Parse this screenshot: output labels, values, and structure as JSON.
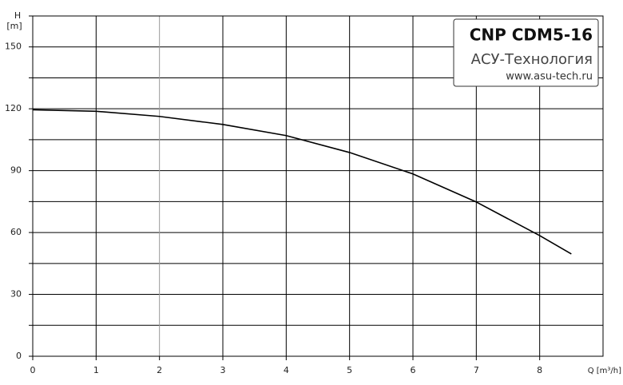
{
  "chart_data": {
    "type": "line",
    "title": "CNP CDM5-16",
    "subtitle": "АСУ-Технология",
    "source": "www.asu-tech.ru",
    "x_label": "Q [m³/h]",
    "y_label": "H",
    "y_unit": "[m]",
    "x": [
      0,
      1,
      2,
      3,
      4,
      5,
      6,
      7,
      8,
      8.5
    ],
    "series": [
      {
        "color": "#000000",
        "values": [
          119.5,
          118.8,
          116.3,
          112.4,
          107,
          98.8,
          88.4,
          74.8,
          58.5,
          49.6
        ]
      }
    ],
    "xlim": [
      0,
      9
    ],
    "xticks": [
      0,
      1,
      2,
      3,
      4,
      5,
      6,
      7,
      8
    ],
    "ylim": [
      0,
      165
    ],
    "yticks": [
      0,
      30,
      60,
      90,
      120,
      150
    ],
    "y_minor_ticks": [
      15,
      45,
      75,
      105,
      135,
      165
    ],
    "grid": true
  }
}
